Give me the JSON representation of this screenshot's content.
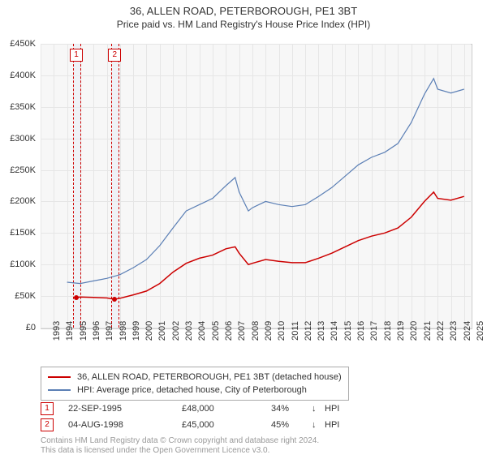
{
  "title": "36, ALLEN ROAD, PETERBOROUGH, PE1 3BT",
  "subtitle": "Price paid vs. HM Land Registry's House Price Index (HPI)",
  "chart": {
    "type": "line",
    "background_color": "#f7f7f7",
    "grid_color": "#e6e6e6",
    "border_color": "#cccccc",
    "x_start_year": 1993,
    "x_end_year": 2025.5,
    "xtick_years": [
      1993,
      1994,
      1995,
      1996,
      1997,
      1998,
      1999,
      2000,
      2001,
      2002,
      2003,
      2004,
      2005,
      2006,
      2007,
      2008,
      2009,
      2010,
      2011,
      2012,
      2013,
      2014,
      2015,
      2016,
      2017,
      2018,
      2019,
      2020,
      2021,
      2022,
      2023,
      2024,
      2025
    ],
    "ylim": [
      0,
      450000
    ],
    "ytick_step": 50000,
    "ytick_labels": [
      "£0",
      "£50K",
      "£100K",
      "£150K",
      "£200K",
      "£250K",
      "£300K",
      "£350K",
      "£400K",
      "£450K"
    ],
    "bands": [
      {
        "marker": "1",
        "year": 1995.7,
        "width_years": 0.5
      },
      {
        "marker": "2",
        "year": 1998.6,
        "width_years": 0.5
      }
    ],
    "marker_border_color": "#cc0000",
    "series": [
      {
        "name": "36, ALLEN ROAD, PETERBOROUGH, PE1 3BT (detached house)",
        "color": "#cc0000",
        "line_width": 1.5,
        "points_year_value": [
          [
            1995.7,
            48000
          ],
          [
            1996,
            48500
          ],
          [
            1997,
            48000
          ],
          [
            1998,
            47000
          ],
          [
            1998.6,
            45000
          ],
          [
            1999,
            46500
          ],
          [
            2000,
            52000
          ],
          [
            2001,
            58000
          ],
          [
            2002,
            70000
          ],
          [
            2003,
            88000
          ],
          [
            2004,
            102000
          ],
          [
            2005,
            110000
          ],
          [
            2006,
            115000
          ],
          [
            2007,
            125000
          ],
          [
            2007.7,
            128000
          ],
          [
            2008,
            118000
          ],
          [
            2008.7,
            100000
          ],
          [
            2009,
            102000
          ],
          [
            2010,
            108000
          ],
          [
            2011,
            105000
          ],
          [
            2012,
            103000
          ],
          [
            2013,
            103000
          ],
          [
            2014,
            110000
          ],
          [
            2015,
            118000
          ],
          [
            2016,
            128000
          ],
          [
            2017,
            138000
          ],
          [
            2018,
            145000
          ],
          [
            2019,
            150000
          ],
          [
            2020,
            158000
          ],
          [
            2021,
            175000
          ],
          [
            2022,
            200000
          ],
          [
            2022.7,
            215000
          ],
          [
            2023,
            205000
          ],
          [
            2024,
            202000
          ],
          [
            2025,
            208000
          ]
        ],
        "dots": [
          {
            "year": 1995.7,
            "value": 48000
          },
          {
            "year": 1998.6,
            "value": 45000
          }
        ]
      },
      {
        "name": "HPI: Average price, detached house, City of Peterborough",
        "color": "#5b7fb5",
        "line_width": 1.2,
        "points_year_value": [
          [
            1995,
            72000
          ],
          [
            1996,
            70000
          ],
          [
            1997,
            74000
          ],
          [
            1998,
            78000
          ],
          [
            1999,
            84000
          ],
          [
            2000,
            95000
          ],
          [
            2001,
            108000
          ],
          [
            2002,
            130000
          ],
          [
            2003,
            158000
          ],
          [
            2004,
            185000
          ],
          [
            2005,
            195000
          ],
          [
            2006,
            205000
          ],
          [
            2007,
            225000
          ],
          [
            2007.7,
            238000
          ],
          [
            2008,
            215000
          ],
          [
            2008.7,
            185000
          ],
          [
            2009,
            190000
          ],
          [
            2010,
            200000
          ],
          [
            2011,
            195000
          ],
          [
            2012,
            192000
          ],
          [
            2013,
            195000
          ],
          [
            2014,
            208000
          ],
          [
            2015,
            222000
          ],
          [
            2016,
            240000
          ],
          [
            2017,
            258000
          ],
          [
            2018,
            270000
          ],
          [
            2019,
            278000
          ],
          [
            2020,
            292000
          ],
          [
            2021,
            325000
          ],
          [
            2022,
            370000
          ],
          [
            2022.7,
            395000
          ],
          [
            2023,
            378000
          ],
          [
            2024,
            372000
          ],
          [
            2025,
            378000
          ]
        ]
      }
    ]
  },
  "legend": {
    "items": [
      {
        "color": "#cc0000",
        "label": "36, ALLEN ROAD, PETERBOROUGH, PE1 3BT (detached house)"
      },
      {
        "color": "#5b7fb5",
        "label": "HPI: Average price, detached house, City of Peterborough"
      }
    ]
  },
  "transactions": [
    {
      "marker": "1",
      "date": "22-SEP-1995",
      "price": "£48,000",
      "pct": "34%",
      "arrow": "↓",
      "hpi_label": "HPI"
    },
    {
      "marker": "2",
      "date": "04-AUG-1998",
      "price": "£45,000",
      "pct": "45%",
      "arrow": "↓",
      "hpi_label": "HPI"
    }
  ],
  "footer": {
    "line1": "Contains HM Land Registry data © Crown copyright and database right 2024.",
    "line2": "This data is licensed under the Open Government Licence v3.0."
  }
}
